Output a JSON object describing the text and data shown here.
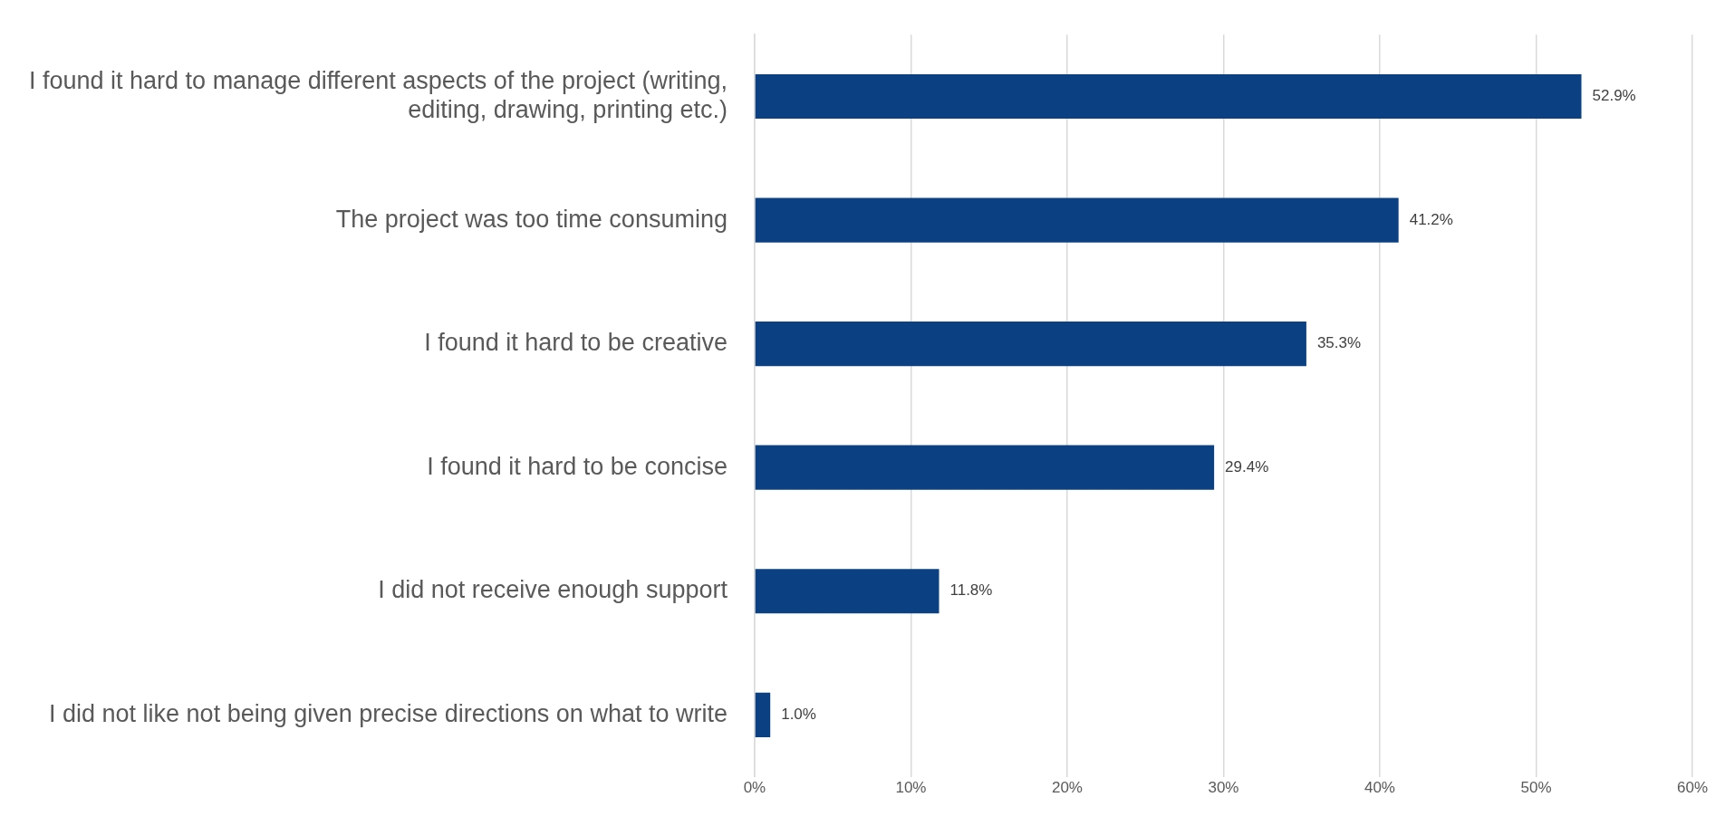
{
  "chart_data": {
    "type": "bar",
    "orientation": "horizontal",
    "categories": [
      "I found it hard to manage different aspects of the project (writing, editing, drawing, printing etc.)",
      "The project was too time consuming",
      "I found it hard to be creative",
      "I found it hard to be concise",
      "I did not receive enough support",
      "I did not like not being given precise directions on what to write"
    ],
    "values": [
      52.9,
      41.2,
      35.3,
      29.4,
      11.8,
      1.0
    ],
    "value_labels": [
      "52.9%",
      "41.2%",
      "35.3%",
      "29.4%",
      "11.8%",
      "1.0%"
    ],
    "color": "#0b4082",
    "xlim": [
      0,
      60
    ],
    "xticks": [
      {
        "value": 0,
        "label": "0%"
      },
      {
        "value": 10,
        "label": "10%"
      },
      {
        "value": 20,
        "label": "20%"
      },
      {
        "value": 30,
        "label": "30%"
      },
      {
        "value": 40,
        "label": "40%"
      },
      {
        "value": 50,
        "label": "50%"
      },
      {
        "value": 60,
        "label": "60%"
      }
    ],
    "grid": "x",
    "legend": false
  }
}
